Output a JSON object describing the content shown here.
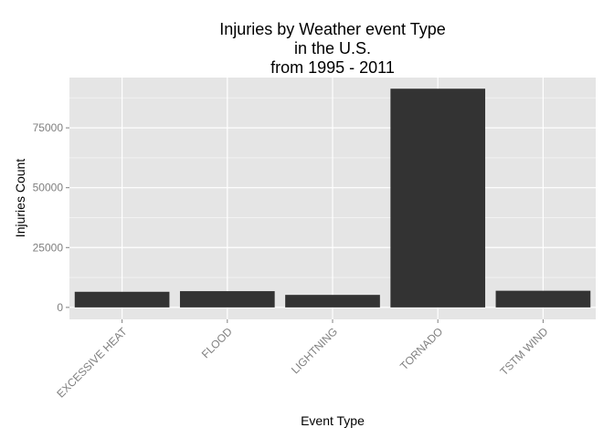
{
  "chart_data": {
    "type": "bar",
    "title_lines": [
      "Injuries by Weather event Type",
      "in the U.S.",
      "from 1995 - 2011"
    ],
    "xlabel": "Event Type",
    "ylabel": "Injuries Count",
    "categories": [
      "EXCESSIVE HEAT",
      "FLOOD",
      "LIGHTNING",
      "TORNADO",
      "TSTM WIND"
    ],
    "values": [
      6525,
      6789,
      5230,
      91346,
      6957
    ],
    "ylim": [
      -5000,
      96000
    ],
    "yticks": [
      0,
      25000,
      50000,
      75000
    ],
    "ytick_labels": [
      "0",
      "25000",
      "50000",
      "75000"
    ],
    "grid": true,
    "colors": {
      "bar": "#333333",
      "panel": "#e5e5e5",
      "grid_major": "#ffffff",
      "grid_minor": "#f2f2f2"
    }
  }
}
